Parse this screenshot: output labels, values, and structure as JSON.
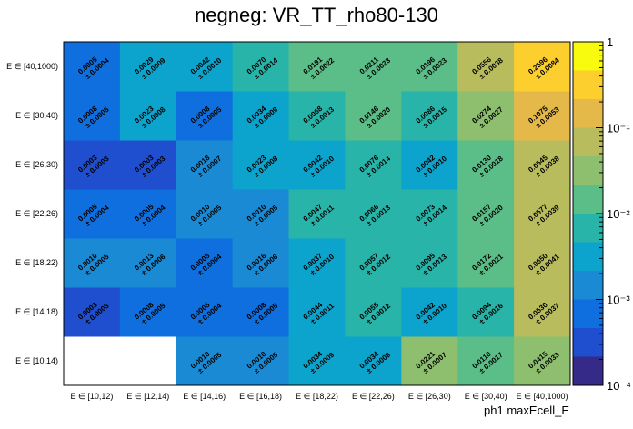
{
  "chart_data": {
    "type": "heatmap",
    "title": "negneg: VR_TT_rho80-130",
    "xlabel": "ph1 maxEcell_E",
    "ylabel": "",
    "x_categories": [
      "E ∈ [10,12)",
      "E ∈ [12,14)",
      "E ∈ [14,16)",
      "E ∈ [16,18)",
      "E ∈ [18,22)",
      "E ∈ [22,26)",
      "E ∈ [26,30)",
      "E ∈ [30,40)",
      "E ∈ [40,1000)"
    ],
    "y_categories": [
      "E ∈ [10,14)",
      "E ∈ [14,18)",
      "E ∈ [18,22)",
      "E ∈ [22,26)",
      "E ∈ [26,30)",
      "E ∈ [30,40)",
      "E ∈ [40,1000)"
    ],
    "values": [
      [
        null,
        null,
        0.001,
        0.001,
        0.0034,
        0.0034,
        0.0221,
        0.011,
        0.0415
      ],
      [
        0.0003,
        0.0008,
        0.0005,
        0.0008,
        0.0044,
        0.0055,
        0.0042,
        0.0094,
        0.053
      ],
      [
        0.001,
        0.0013,
        0.0005,
        0.0016,
        0.0037,
        0.0057,
        0.0095,
        0.0172,
        0.065
      ],
      [
        0.0005,
        0.0005,
        0.001,
        0.001,
        0.0047,
        0.0066,
        0.0073,
        0.0157,
        0.0577
      ],
      [
        0.0003,
        0.0003,
        0.0018,
        0.0023,
        0.0042,
        0.0076,
        0.0042,
        0.013,
        0.0545
      ],
      [
        0.0008,
        0.0023,
        0.0008,
        0.0034,
        0.0068,
        0.0146,
        0.0086,
        0.0274,
        0.1075
      ],
      [
        0.0005,
        0.0029,
        0.0042,
        0.007,
        0.0191,
        0.0211,
        0.0196,
        0.0556,
        0.2596
      ]
    ],
    "errors": [
      [
        null,
        null,
        0.0005,
        0.0005,
        0.0009,
        0.0009,
        0.0007,
        0.0017,
        0.0033
      ],
      [
        0.0003,
        0.0005,
        0.0004,
        0.0005,
        0.0011,
        0.0012,
        0.001,
        0.0016,
        0.0037
      ],
      [
        0.0005,
        0.0006,
        0.0004,
        0.0006,
        0.001,
        0.0012,
        0.0013,
        0.0021,
        0.0041
      ],
      [
        0.0004,
        0.0004,
        0.0005,
        0.0005,
        0.0011,
        0.0013,
        0.0014,
        0.002,
        0.0039
      ],
      [
        0.0003,
        0.0003,
        0.0007,
        0.0008,
        0.001,
        0.0014,
        0.001,
        0.0018,
        0.0038
      ],
      [
        0.0005,
        0.0008,
        0.0005,
        0.0009,
        0.0013,
        0.002,
        0.0015,
        0.0027,
        0.0053
      ],
      [
        0.0004,
        0.0009,
        0.001,
        0.0014,
        0.0022,
        0.0023,
        0.0023,
        0.0038,
        0.0084
      ]
    ],
    "value_labels": [
      [
        null,
        null,
        "0.0010",
        "0.0010",
        "0.0034",
        "0.0034",
        "0.0221",
        "0.0110",
        "0.0415"
      ],
      [
        "0.0003",
        "0.0008",
        "0.0005",
        "0.0008",
        "0.0044",
        "0.0055",
        "0.0042",
        "0.0094",
        "0.0530"
      ],
      [
        "0.0010",
        "0.0013",
        "0.0005",
        "0.0016",
        "0.0037",
        "0.0057",
        "0.0095",
        "0.0172",
        "0.0650"
      ],
      [
        "0.0005",
        "0.0005",
        "0.0010",
        "0.0010",
        "0.0047",
        "0.0066",
        "0.0073",
        "0.0157",
        "0.0577"
      ],
      [
        "0.0003",
        "0.0003",
        "0.0018",
        "0.0023",
        "0.0042",
        "0.0076",
        "0.0042",
        "0.0130",
        "0.0545"
      ],
      [
        "0.0008",
        "0.0023",
        "0.0008",
        "0.0034",
        "0.0068",
        "0.0146",
        "0.0086",
        "0.0274",
        "0.1075"
      ],
      [
        "0.0005",
        "0.0029",
        "0.0042",
        "0.0070",
        "0.0191",
        "0.0211",
        "0.0196",
        "0.0556",
        "0.2596"
      ]
    ],
    "error_labels": [
      [
        null,
        null,
        "± 0.0005",
        "± 0.0005",
        "± 0.0009",
        "± 0.0009",
        "± 0.0007",
        "± 0.0017",
        "± 0.0033"
      ],
      [
        "± 0.0003",
        "± 0.0005",
        "± 0.0004",
        "± 0.0005",
        "± 0.0011",
        "± 0.0012",
        "± 0.0010",
        "± 0.0016",
        "± 0.0037"
      ],
      [
        "± 0.0005",
        "± 0.0006",
        "± 0.0004",
        "± 0.0006",
        "± 0.0010",
        "± 0.0012",
        "± 0.0013",
        "± 0.0021",
        "± 0.0041"
      ],
      [
        "± 0.0004",
        "± 0.0004",
        "± 0.0005",
        "± 0.0005",
        "± 0.0011",
        "± 0.0013",
        "± 0.0014",
        "± 0.0020",
        "± 0.0039"
      ],
      [
        "± 0.0003",
        "± 0.0003",
        "± 0.0007",
        "± 0.0008",
        "± 0.0010",
        "± 0.0014",
        "± 0.0010",
        "± 0.0018",
        "± 0.0038"
      ],
      [
        "± 0.0005",
        "± 0.0008",
        "± 0.0005",
        "± 0.0009",
        "± 0.0013",
        "± 0.0020",
        "± 0.0015",
        "± 0.0027",
        "± 0.0053"
      ],
      [
        "± 0.0004",
        "± 0.0009",
        "± 0.0010",
        "± 0.0014",
        "± 0.0022",
        "± 0.0023",
        "± 0.0023",
        "± 0.0038",
        "± 0.0084"
      ]
    ],
    "zscale": "log",
    "zlim": [
      0.0001,
      1
    ],
    "colorbar_ticks": [
      {
        "value": 1,
        "label": "1"
      },
      {
        "value": 0.1,
        "label": "10⁻¹"
      },
      {
        "value": 0.01,
        "label": "10⁻²"
      },
      {
        "value": 0.001,
        "label": "10⁻³"
      },
      {
        "value": 0.0001,
        "label": "10⁻⁴"
      }
    ],
    "colormap": [
      "#352a87",
      "#1f4fcf",
      "#0f6fde",
      "#1a8ad4",
      "#0ca4cc",
      "#28b4a8",
      "#5bbd87",
      "#8dbf6e",
      "#b8bc5c",
      "#e4b94a",
      "#fcce2e",
      "#f9fb0e"
    ],
    "grid": false,
    "legend": "colorbar-right"
  }
}
